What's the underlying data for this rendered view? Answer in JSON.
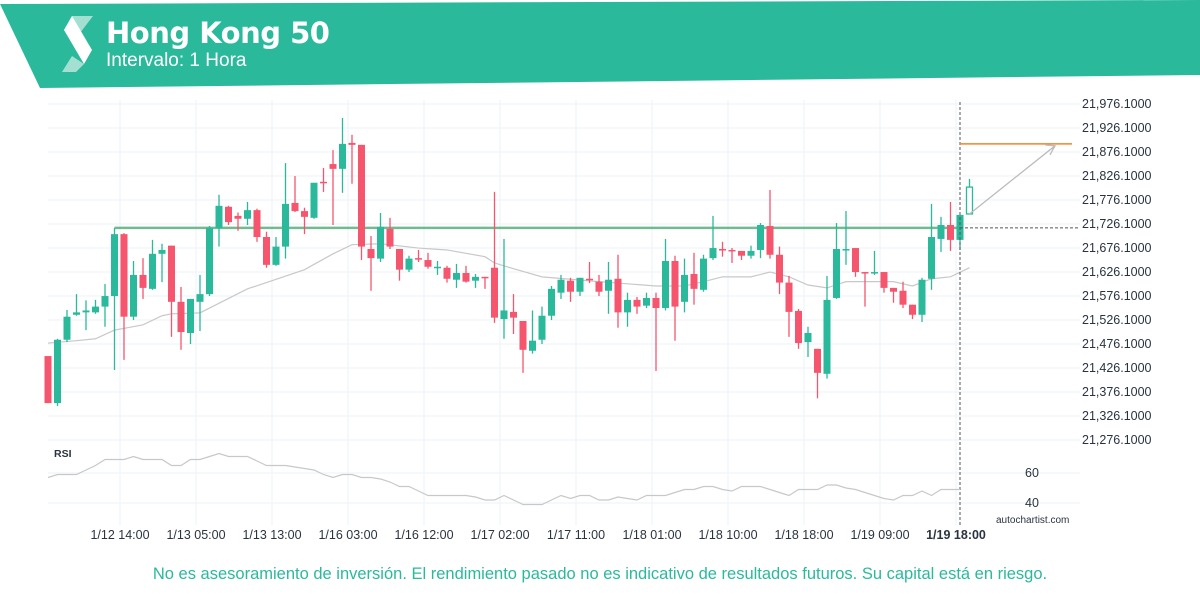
{
  "header": {
    "title": "Hong Kong 50",
    "subtitle": "Intervalo: 1 Hora"
  },
  "footer": {
    "disclaimer": "No es asesoramiento de inversión. El rendimiento pasado no es indicativo de resultados futuros. Su capital está en riesgo.",
    "brand": "autochartist.com"
  },
  "colors": {
    "brand": "#2bb99c",
    "up": "#2bb99c",
    "down": "#f5566e",
    "target": "#f5822a",
    "support": "#5aae7c",
    "ma": "#c8c8c8"
  },
  "chart_data": {
    "type": "candlestick",
    "title": "Hong Kong 50",
    "interval": "1 Hora",
    "ylim": [
      21252.1,
      22000.1
    ],
    "y_ticks": [
      "21,976.1000",
      "21,926.1000",
      "21,876.1000",
      "21,826.1000",
      "21,776.1000",
      "21,726.1000",
      "21,676.1000",
      "21,626.1000",
      "21,576.1000",
      "21,526.1000",
      "21,476.1000",
      "21,426.1000",
      "21,376.1000",
      "21,326.1000",
      "21,276.1000"
    ],
    "y_tick_values": [
      21976.1,
      21926.1,
      21876.1,
      21826.1,
      21776.1,
      21726.1,
      21676.1,
      21626.1,
      21576.1,
      21526.1,
      21476.1,
      21426.1,
      21376.1,
      21326.1,
      21276.1
    ],
    "x_ticks": [
      {
        "label": "1/12 14:00",
        "index": 9
      },
      {
        "label": "1/13 05:00",
        "index": 17
      },
      {
        "label": "1/13 13:00",
        "index": 25
      },
      {
        "label": "1/16 03:00",
        "index": 33
      },
      {
        "label": "1/16 12:00",
        "index": 41
      },
      {
        "label": "1/17 02:00",
        "index": 49
      },
      {
        "label": "1/17 11:00",
        "index": 57
      },
      {
        "label": "1/18 01:00",
        "index": 65
      },
      {
        "label": "1/18 10:00",
        "index": 73
      },
      {
        "label": "1/18 18:00",
        "index": 81
      },
      {
        "label": "1/19 09:00",
        "index": 89
      },
      {
        "label": "1/19 18:00",
        "index": 97,
        "highlight": true
      }
    ],
    "candles_ohlc": [
      [
        21451,
        21451,
        21353,
        21353
      ],
      [
        21353,
        21487,
        21347,
        21485
      ],
      [
        21485,
        21547,
        21480,
        21533
      ],
      [
        21537,
        21580,
        21535,
        21542
      ],
      [
        21542,
        21567,
        21505,
        21546
      ],
      [
        21542,
        21568,
        21539,
        21554
      ],
      [
        21554,
        21601,
        21512,
        21576
      ],
      [
        21576,
        21718,
        21422,
        21705
      ],
      [
        21705,
        21707,
        21443,
        21533
      ],
      [
        21533,
        21649,
        21526,
        21620
      ],
      [
        21620,
        21655,
        21570,
        21593
      ],
      [
        21591,
        21693,
        21589,
        21664
      ],
      [
        21664,
        21685,
        21605,
        21672
      ],
      [
        21681,
        21681,
        21491,
        21564
      ],
      [
        21564,
        21595,
        21464,
        21501
      ],
      [
        21499,
        21570,
        21476,
        21570
      ],
      [
        21564,
        21620,
        21503,
        21580
      ],
      [
        21580,
        21722,
        21576,
        21718
      ],
      [
        21718,
        21787,
        21679,
        21764
      ],
      [
        21762,
        21764,
        21724,
        21730
      ],
      [
        21743,
        21750,
        21712,
        21737
      ],
      [
        21737,
        21772,
        21724,
        21755
      ],
      [
        21755,
        21758,
        21689,
        21699
      ],
      [
        21699,
        21710,
        21635,
        21641
      ],
      [
        21641,
        21699,
        21639,
        21679
      ],
      [
        21679,
        21853,
        21654,
        21768
      ],
      [
        21770,
        21826,
        21751,
        21753
      ],
      [
        21753,
        21760,
        21705,
        21741
      ],
      [
        21739,
        21812,
        21737,
        21812
      ],
      [
        21814,
        21843,
        21793,
        21812
      ],
      [
        21851,
        21880,
        21724,
        21841
      ],
      [
        21841,
        21947,
        21791,
        21893
      ],
      [
        21895,
        21912,
        21810,
        21891
      ],
      [
        21891,
        21891,
        21651,
        21679
      ],
      [
        21674,
        21701,
        21587,
        21655
      ],
      [
        21654,
        21749,
        21647,
        21720
      ],
      [
        21716,
        21739,
        21674,
        21679
      ],
      [
        21674,
        21674,
        21608,
        21631
      ],
      [
        21631,
        21660,
        21626,
        21654
      ],
      [
        21655,
        21672,
        21647,
        21654
      ],
      [
        21651,
        21666,
        21633,
        21637
      ],
      [
        21636,
        21649,
        21620,
        21637
      ],
      [
        21635,
        21639,
        21604,
        21612
      ],
      [
        21610,
        21643,
        21593,
        21624
      ],
      [
        21624,
        21639,
        21604,
        21606
      ],
      [
        21608,
        21622,
        21593,
        21616
      ],
      [
        21616,
        21616,
        21591,
        21614
      ],
      [
        21635,
        21793,
        21520,
        21531
      ],
      [
        21528,
        21695,
        21487,
        21546
      ],
      [
        21543,
        21580,
        21497,
        21531
      ],
      [
        21524,
        21524,
        21416,
        21464
      ],
      [
        21462,
        21546,
        21456,
        21483
      ],
      [
        21485,
        21554,
        21476,
        21535
      ],
      [
        21535,
        21597,
        21526,
        21591
      ],
      [
        21583,
        21620,
        21570,
        21610
      ],
      [
        21608,
        21614,
        21564,
        21585
      ],
      [
        21585,
        21614,
        21576,
        21614
      ],
      [
        21612,
        21647,
        21603,
        21610
      ],
      [
        21606,
        21620,
        21576,
        21585
      ],
      [
        21587,
        21647,
        21539,
        21610
      ],
      [
        21612,
        21662,
        21510,
        21542
      ],
      [
        21542,
        21583,
        21512,
        21568
      ],
      [
        21568,
        21574,
        21539,
        21554
      ],
      [
        21556,
        21583,
        21551,
        21572
      ],
      [
        21572,
        21583,
        21420,
        21551
      ],
      [
        21551,
        21695,
        21546,
        21649
      ],
      [
        21649,
        21660,
        21483,
        21554
      ],
      [
        21564,
        21654,
        21542,
        21620
      ],
      [
        21622,
        21666,
        21558,
        21591
      ],
      [
        21589,
        21662,
        21585,
        21654
      ],
      [
        21655,
        21743,
        21651,
        21676
      ],
      [
        21674,
        21689,
        21658,
        21672
      ],
      [
        21672,
        21676,
        21645,
        21670
      ],
      [
        21670,
        21670,
        21651,
        21660
      ],
      [
        21660,
        21681,
        21654,
        21670
      ],
      [
        21672,
        21728,
        21655,
        21724
      ],
      [
        21722,
        21797,
        21654,
        21662
      ],
      [
        21662,
        21679,
        21580,
        21604
      ],
      [
        21604,
        21618,
        21491,
        21543
      ],
      [
        21545,
        21549,
        21466,
        21478
      ],
      [
        21480,
        21512,
        21449,
        21499
      ],
      [
        21466,
        21466,
        21363,
        21416
      ],
      [
        21414,
        21618,
        21404,
        21568
      ],
      [
        21572,
        21728,
        21570,
        21674
      ],
      [
        21672,
        21753,
        21641,
        21674
      ],
      [
        21676,
        21676,
        21616,
        21626
      ],
      [
        21626,
        21626,
        21554,
        21624
      ],
      [
        21624,
        21670,
        21620,
        21626
      ],
      [
        21626,
        21626,
        21583,
        21593
      ],
      [
        21593,
        21593,
        21562,
        21585
      ],
      [
        21587,
        21606,
        21551,
        21558
      ],
      [
        21558,
        21558,
        21528,
        21537
      ],
      [
        21537,
        21614,
        21522,
        21610
      ],
      [
        21612,
        21768,
        21589,
        21699
      ],
      [
        21695,
        21741,
        21668,
        21724
      ],
      [
        21724,
        21772,
        21670,
        21693
      ],
      [
        21693,
        21745,
        21672,
        21745
      ],
      [
        21747,
        21820,
        21747,
        21803
      ]
    ],
    "forecast_candle_index": 98,
    "moving_average": [
      [
        1,
        21478
      ],
      [
        4,
        21483
      ],
      [
        6,
        21487
      ],
      [
        8,
        21505
      ],
      [
        11,
        21516
      ],
      [
        13,
        21535
      ],
      [
        14,
        21539
      ],
      [
        17,
        21541
      ],
      [
        18,
        21551
      ],
      [
        22,
        21591
      ],
      [
        24,
        21604
      ],
      [
        28,
        21631
      ],
      [
        31,
        21664
      ],
      [
        33,
        21683
      ],
      [
        36,
        21685
      ],
      [
        40,
        21676
      ],
      [
        43,
        21672
      ],
      [
        47,
        21658
      ],
      [
        48,
        21645
      ],
      [
        50,
        21633
      ],
      [
        53,
        21616
      ],
      [
        59,
        21606
      ],
      [
        65,
        21597
      ],
      [
        68,
        21597
      ],
      [
        70,
        21606
      ],
      [
        72,
        21616
      ],
      [
        75,
        21616
      ],
      [
        77,
        21626
      ],
      [
        79,
        21616
      ],
      [
        81,
        21599
      ],
      [
        83,
        21593
      ],
      [
        85,
        21606
      ],
      [
        90,
        21606
      ],
      [
        92,
        21597
      ],
      [
        94,
        21612
      ],
      [
        96,
        21616
      ],
      [
        98,
        21635
      ]
    ],
    "support_level": {
      "price": 21718,
      "from_index": 8,
      "to_index": 97
    },
    "target_level": {
      "price": 21893,
      "from_index": 97
    },
    "current_level": 21718,
    "forecast_arrow": {
      "from": [
        98,
        21747
      ],
      "to": [
        107,
        21889
      ]
    },
    "rsi": {
      "label": "RSI",
      "ticks": [
        60,
        40
      ],
      "values": [
        57,
        59,
        59,
        59,
        62,
        65,
        69,
        69,
        69,
        71,
        69,
        69,
        69,
        65,
        65,
        69,
        69,
        71,
        73,
        71,
        71,
        71,
        68,
        65,
        65,
        65,
        64,
        63,
        62,
        59,
        57,
        59,
        59,
        57,
        57,
        56,
        54,
        51,
        51,
        48,
        45,
        45,
        45,
        45,
        45,
        44,
        42,
        42,
        45,
        42,
        39,
        39,
        39,
        42,
        45,
        43,
        45,
        45,
        42,
        42,
        44,
        43,
        42,
        45,
        45,
        45,
        47,
        49,
        49,
        51,
        51,
        49,
        48,
        51,
        51,
        51,
        49,
        47,
        45,
        49,
        49,
        49,
        52,
        52,
        50,
        49,
        47,
        45,
        43,
        42,
        45,
        45,
        48,
        45,
        49,
        49,
        49
      ]
    }
  }
}
